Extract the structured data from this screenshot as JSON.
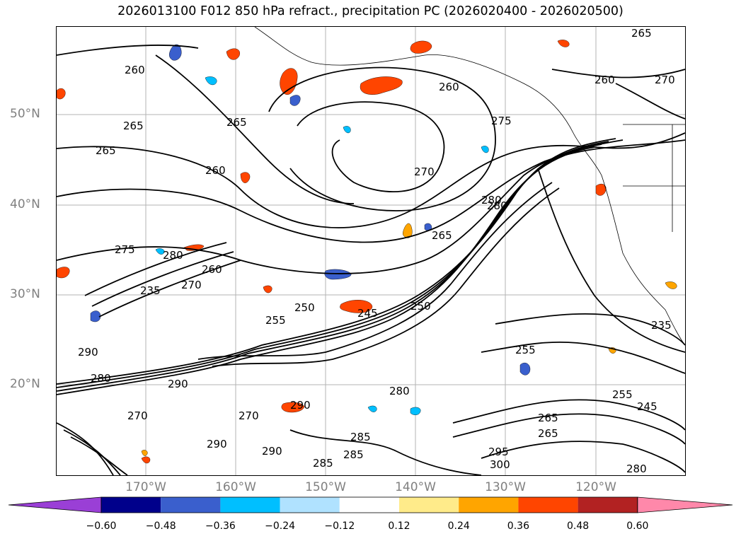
{
  "title": "2026013100 F012 850 hPa refract., precipitation PC (2026020400 - 2026020500)",
  "map": {
    "latitude_labels": [
      "50°N",
      "40°N",
      "30°N",
      "20°N"
    ],
    "longitude_labels": [
      "170°W",
      "160°W",
      "150°W",
      "140°W",
      "130°W",
      "120°W"
    ],
    "contour_labels": [
      "265",
      "260",
      "260",
      "265",
      "265",
      "260",
      "275",
      "270",
      "270",
      "260",
      "265",
      "275",
      "280",
      "280",
      "260",
      "235",
      "270",
      "250",
      "255",
      "245",
      "280",
      "265",
      "250",
      "235",
      "290",
      "280",
      "290",
      "290",
      "270",
      "285",
      "290",
      "285",
      "295",
      "300",
      "290",
      "255",
      "255",
      "245",
      "265",
      "270",
      "280",
      "285",
      "265",
      "280"
    ],
    "colors": {
      "contour": "#000000",
      "grid": "#b3b3b3",
      "coast": "#000000",
      "negative_fill": [
        "#9a3fd6",
        "#00008b",
        "#3a5fcd",
        "#00bfff",
        "#b0e2ff"
      ],
      "positive_fill": [
        "#ffeb8a",
        "#ffa500",
        "#ff4500",
        "#b22222",
        "#ff88aa"
      ]
    }
  },
  "colorbar": {
    "colors": [
      "#9a3fd6",
      "#00008b",
      "#3a5fcd",
      "#00bfff",
      "#b0e2ff",
      "#ffffff",
      "#ffeb8a",
      "#ffa500",
      "#ff4500",
      "#b22222",
      "#ff88aa"
    ],
    "tick_labels": [
      "−0.60",
      "−0.48",
      "−0.36",
      "−0.24",
      "−0.12",
      "0.12",
      "0.24",
      "0.36",
      "0.48",
      "0.60"
    ]
  }
}
